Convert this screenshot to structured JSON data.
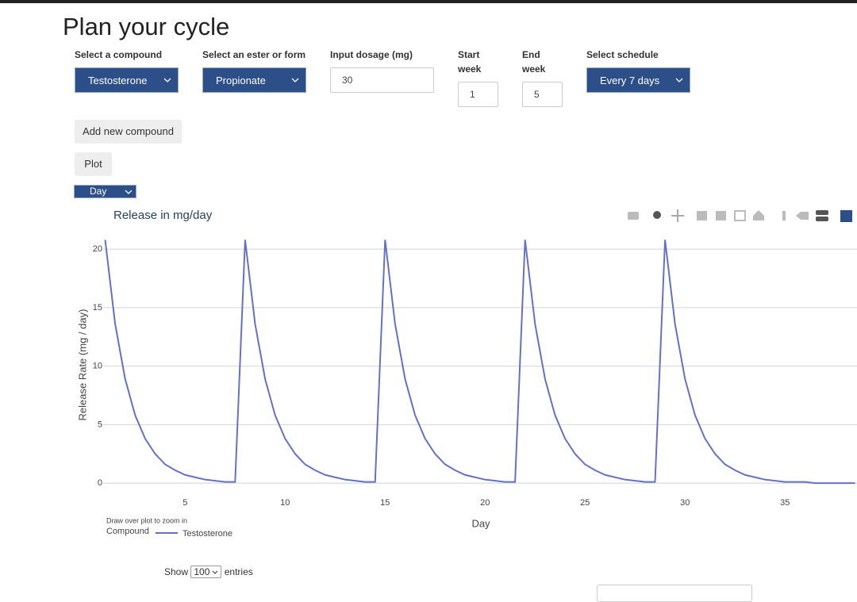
{
  "header": {
    "title": "Plan your cycle"
  },
  "form": {
    "fields": [
      {
        "label": "Select a compound",
        "value": "Testosterone"
      },
      {
        "label": "Select an ester or form",
        "value": "Propionate"
      },
      {
        "label": "Input dosage (mg)",
        "value": "30"
      },
      {
        "label": "Start week",
        "value": "1"
      },
      {
        "label": "End week",
        "value": "5"
      },
      {
        "label": "Select schedule",
        "value": "Every 7 days"
      }
    ]
  },
  "buttons": [
    "Add new compound",
    "Plot"
  ],
  "unit_select": "Day",
  "chart_data": {
    "type": "line",
    "title": "Release in mg/day",
    "x_label": "Day",
    "y_label": "Release Rate (mg / day)",
    "hint": "Draw over plot to zoom in",
    "legend_title": "Compound",
    "x": [
      1,
      1.5,
      2,
      2.5,
      3,
      3.5,
      4,
      4.5,
      5,
      5.5,
      6,
      6.5,
      7,
      7.5,
      8,
      8.5,
      9,
      9.5,
      10,
      10.5,
      11,
      11.5,
      12,
      12.5,
      13,
      13.5,
      14,
      14.5,
      15,
      15.5,
      16,
      16.5,
      17,
      17.5,
      18,
      18.5,
      19,
      19.5,
      20,
      20.5,
      21,
      21.5,
      22,
      22.5,
      23,
      23.5,
      24,
      24.5,
      25,
      25.5,
      26,
      26.5,
      27,
      27.5,
      28,
      28.5,
      29,
      29.5,
      30,
      30.5,
      31,
      31.5,
      32,
      32.5,
      33,
      33.5,
      34,
      34.5,
      35,
      35.5,
      36,
      36.5,
      37,
      37.5,
      38,
      38.5
    ],
    "series": [
      {
        "name": "Testosterone",
        "color": "#6571c9",
        "values": [
          20.8,
          13.6,
          8.9,
          5.8,
          3.8,
          2.5,
          1.6,
          1.1,
          0.7,
          0.5,
          0.3,
          0.2,
          0.1,
          0.1,
          20.8,
          13.6,
          8.9,
          5.8,
          3.8,
          2.5,
          1.6,
          1.1,
          0.7,
          0.5,
          0.3,
          0.2,
          0.1,
          0.1,
          20.8,
          13.6,
          8.9,
          5.8,
          3.8,
          2.5,
          1.6,
          1.1,
          0.7,
          0.5,
          0.3,
          0.2,
          0.1,
          0.1,
          20.8,
          13.6,
          8.9,
          5.8,
          3.8,
          2.5,
          1.6,
          1.1,
          0.7,
          0.5,
          0.3,
          0.2,
          0.1,
          0.1,
          20.8,
          13.6,
          8.9,
          5.8,
          3.8,
          2.5,
          1.6,
          1.1,
          0.7,
          0.5,
          0.3,
          0.2,
          0.1,
          0.1,
          0.1,
          0,
          0,
          0,
          0,
          0
        ]
      }
    ],
    "xlim": [
      0.9,
      38.6
    ],
    "ylim": [
      -0.4,
      21.3
    ],
    "xticks": [
      5,
      10,
      15,
      20,
      25,
      30,
      35
    ],
    "yticks": [
      0,
      5,
      10,
      15,
      20
    ],
    "grid": true
  },
  "table_controls": {
    "show": "Show",
    "page_length": "100",
    "entries": "entries"
  }
}
